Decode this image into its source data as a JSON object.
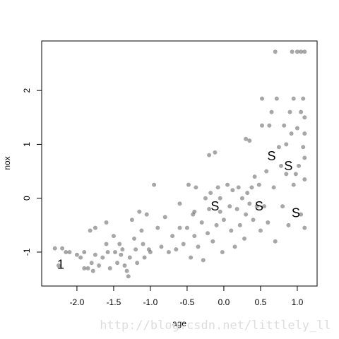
{
  "chart_data": {
    "type": "scatter",
    "x_label": "age",
    "y_label": "nox",
    "watermark": "http://blog.csdn.net/littlely_ll",
    "xlim": [
      -2.48,
      1.27
    ],
    "ylim": [
      -1.63,
      2.92
    ],
    "xticks": [
      {
        "value": -2,
        "label": "-2.0"
      },
      -1.5,
      {
        "value": -1,
        "label": "-1.0"
      },
      -0.5,
      {
        "value": 0,
        "label": "0.0"
      },
      0.5,
      {
        "value": 1,
        "label": "1.0"
      }
    ],
    "yticks": [
      -1,
      0,
      1,
      2
    ],
    "grid": false,
    "series": [
      {
        "color": "#505050",
        "x": [
          -2.3,
          -2.2,
          -2.15,
          -2.1,
          -2.0,
          -1.9,
          -1.85,
          -1.8,
          -1.78,
          -1.75,
          -1.7,
          -1.65,
          -1.6,
          -1.58,
          -1.55,
          -1.5,
          -1.48,
          -1.45,
          -1.42,
          -1.4,
          -1.38,
          -1.35,
          -1.32,
          -1.3,
          -1.28,
          -1.25,
          -1.22,
          -1.2,
          -1.18,
          -1.15,
          -1.12,
          -1.1,
          -1.08,
          -1.05,
          -1.02,
          -1.0,
          -1.75,
          -1.82,
          -1.95,
          -1.6,
          -2.25,
          -1.9,
          -0.95,
          -0.9,
          -0.85,
          -0.8,
          -0.75,
          -0.7,
          -0.65,
          -0.6,
          -0.55,
          -0.5,
          -0.48,
          -0.45,
          -0.42,
          -0.4,
          -0.38,
          -0.35,
          -0.3,
          -0.28,
          -0.25,
          -0.22,
          -0.2,
          -0.18,
          -0.15,
          -0.1,
          -0.08,
          -0.05,
          -0.02,
          -0.2,
          -0.12,
          -0.4,
          -0.6,
          -0.05,
          0.0,
          0.05,
          0.08,
          0.1,
          0.12,
          0.15,
          0.18,
          0.2,
          0.22,
          0.25,
          0.28,
          0.3,
          0.32,
          0.35,
          0.38,
          0.4,
          0.42,
          0.45,
          0.48,
          0.5,
          0.52,
          0.52,
          0.55,
          0.58,
          0.6,
          0.62,
          0.65,
          0.68,
          0.7,
          0.72,
          0.75,
          0.78,
          0.8,
          0.82,
          0.85,
          0.88,
          0.9,
          0.92,
          0.95,
          0.95,
          0.98,
          1.0,
          1.02,
          1.05,
          1.05,
          1.08,
          1.1,
          1.1,
          1.1,
          1.05,
          1.0,
          0.93,
          0.7,
          1.1,
          1.1,
          1.08,
          1.1,
          0.3,
          0.35,
          0.85
        ],
        "values": [
          -0.93,
          -0.93,
          -1.0,
          -1.0,
          -1.05,
          -1.3,
          -1.3,
          -1.2,
          -1.35,
          -1.05,
          -1.25,
          -1.1,
          -0.45,
          -1.0,
          -1.3,
          -0.7,
          -1.0,
          -1.2,
          -0.85,
          -1.05,
          -0.95,
          -1.25,
          -1.35,
          -1.45,
          -1.1,
          -0.4,
          -0.75,
          -0.95,
          -1.2,
          -0.25,
          -0.6,
          -0.85,
          -1.1,
          -0.3,
          -0.95,
          -1.0,
          -0.55,
          -0.6,
          -1.1,
          -0.85,
          -1.25,
          -1.0,
          0.25,
          -0.55,
          -0.9,
          -0.35,
          -1.0,
          -0.7,
          -0.95,
          -0.1,
          -0.85,
          -0.55,
          0.25,
          -1.1,
          -0.3,
          -0.7,
          0.2,
          -0.9,
          -0.45,
          -1.15,
          0.0,
          -0.65,
          -0.2,
          0.1,
          -0.8,
          -0.5,
          0.2,
          -0.25,
          -1.0,
          0.8,
          0.85,
          -0.25,
          -0.55,
          0.0,
          -0.4,
          0.25,
          -0.15,
          -0.6,
          0.15,
          -0.9,
          -0.2,
          0.2,
          -0.5,
          0.0,
          -0.75,
          -0.3,
          0.1,
          -0.1,
          0.2,
          -0.4,
          0.4,
          -0.15,
          0.25,
          -0.6,
          1.85,
          1.35,
          -0.15,
          0.5,
          -0.45,
          1.35,
          1.6,
          0.2,
          -0.8,
          1.85,
          0.95,
          0.6,
          -0.15,
          1.35,
          0.45,
          -0.5,
          1.6,
          1.2,
          0.25,
          1.85,
          0.45,
          1.3,
          0.6,
          -0.3,
          1.6,
          0.95,
          0.35,
          1.2,
          2.72,
          2.72,
          2.72,
          2.72,
          2.72,
          0.75,
          -0.55,
          1.85,
          1.5,
          1.1,
          1.07,
          1.0
        ]
      }
    ],
    "annotations": [
      {
        "text": "S",
        "x": -0.12,
        "y": -0.15,
        "color": "#e8141c"
      },
      {
        "text": "S",
        "x": 0.48,
        "y": -0.15,
        "color": "#e8141c"
      },
      {
        "text": "S",
        "x": 0.65,
        "y": 0.78,
        "color": "#e8141c"
      },
      {
        "text": "S",
        "x": 0.88,
        "y": 0.6,
        "color": "#e8141c"
      },
      {
        "text": "S",
        "x": 0.98,
        "y": -0.27,
        "color": "#e8141c"
      },
      {
        "text": "1",
        "x": -2.22,
        "y": -1.23,
        "color": "#1010c8"
      }
    ]
  }
}
